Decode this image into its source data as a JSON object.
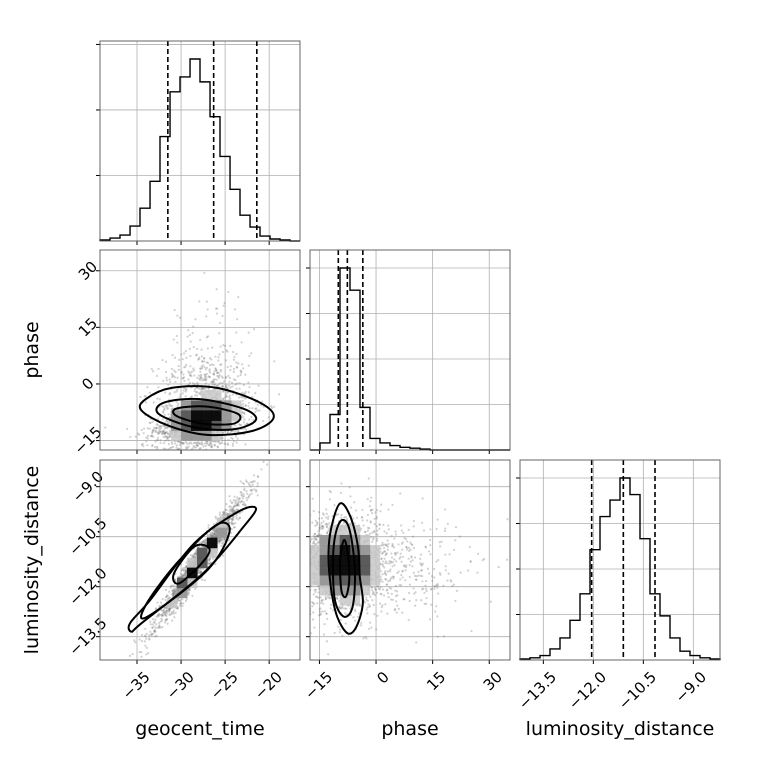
{
  "chart_data": {
    "type": "corner",
    "parameters": [
      "geocent_time",
      "phase",
      "luminosity_distance"
    ],
    "axes": {
      "geocent_time": {
        "range": [
          -39.2,
          -16.5
        ],
        "ticks": [
          -35,
          -30,
          -25,
          -20
        ],
        "tick_labels": [
          "−35",
          "−30",
          "−25",
          "−20"
        ],
        "label": "geocent_time"
      },
      "phase": {
        "range": [
          -17.5,
          35.5
        ],
        "ticks": [
          -15,
          0,
          15,
          30
        ],
        "tick_labels": [
          "−15",
          "0",
          "15",
          "30"
        ],
        "label": "phase"
      },
      "luminosity_distance": {
        "range": [
          -14.2,
          -8.2
        ],
        "ticks": [
          -13.5,
          -12.0,
          -10.5,
          -9.0
        ],
        "tick_labels": [
          "−13.5",
          "−12.0",
          "−10.5",
          "−9.0"
        ],
        "label": "luminosity_distance"
      }
    },
    "grid": true,
    "histograms": [
      {
        "parameter": "geocent_time",
        "bin_edges": [
          -39.2,
          -38.06,
          -36.93,
          -35.79,
          -34.66,
          -33.52,
          -32.39,
          -31.25,
          -30.12,
          -28.98,
          -27.85,
          -26.71,
          -25.58,
          -24.44,
          -23.31,
          -22.17,
          -21.04,
          -19.9,
          -18.77,
          -17.63,
          -16.5
        ],
        "counts": [
          1,
          3,
          6,
          15,
          33,
          60,
          105,
          150,
          165,
          183,
          160,
          125,
          85,
          52,
          26,
          14,
          5,
          2,
          1,
          0
        ],
        "quantiles": [
          -31.5,
          -26.3,
          -21.4
        ]
      },
      {
        "parameter": "phase",
        "bin_edges": [
          -17.5,
          -14.85,
          -12.2,
          -9.55,
          -6.9,
          -4.25,
          -1.6,
          1.05,
          3.7,
          6.35,
          9.0,
          11.65,
          14.3,
          16.95,
          19.6,
          22.25,
          24.9,
          27.55,
          30.2,
          32.85,
          35.5
        ],
        "counts": [
          0,
          8,
          40,
          205,
          180,
          48,
          13,
          8,
          5,
          3,
          2,
          1,
          0,
          0,
          0,
          0,
          0,
          0,
          0,
          0
        ],
        "quantiles": [
          -10.0,
          -7.6,
          -3.5
        ]
      },
      {
        "parameter": "luminosity_distance",
        "bin_edges": [
          -14.2,
          -13.9,
          -13.6,
          -13.3,
          -13.0,
          -12.7,
          -12.4,
          -12.1,
          -11.8,
          -11.5,
          -11.2,
          -10.9,
          -10.6,
          -10.3,
          -10.0,
          -9.7,
          -9.4,
          -9.1,
          -8.8,
          -8.5,
          -8.2
        ],
        "counts": [
          1,
          2,
          4,
          10,
          20,
          36,
          60,
          100,
          130,
          145,
          165,
          150,
          110,
          60,
          40,
          20,
          8,
          4,
          2,
          1
        ],
        "quantiles": [
          -12.05,
          -11.1,
          -10.15
        ]
      }
    ],
    "joint": [
      {
        "x": "geocent_time",
        "y": "phase",
        "correlation": 0.28,
        "n_points": 1800,
        "density_peak": {
          "x": -27.6,
          "y": -9.2
        },
        "contours": [
          [
            [
              -34,
              -4
            ],
            [
              -31,
              -1
            ],
            [
              -26,
              -1
            ],
            [
              -21,
              -5
            ],
            [
              -19.5,
              -9
            ],
            [
              -22,
              -12.5
            ],
            [
              -27,
              -13.5
            ],
            [
              -31.5,
              -11
            ],
            [
              -34.5,
              -7
            ]
          ],
          [
            [
              -32,
              -5
            ],
            [
              -28,
              -4
            ],
            [
              -23,
              -6.5
            ],
            [
              -21.5,
              -9.5
            ],
            [
              -24,
              -12
            ],
            [
              -28.5,
              -11.5
            ],
            [
              -32.5,
              -8
            ]
          ],
          [
            [
              -30.5,
              -6.5
            ],
            [
              -27,
              -6
            ],
            [
              -23.5,
              -8
            ],
            [
              -24,
              -10.5
            ],
            [
              -27.5,
              -10.5
            ],
            [
              -30.5,
              -8.5
            ]
          ]
        ]
      },
      {
        "x": "geocent_time",
        "y": "luminosity_distance",
        "correlation": 0.97,
        "n_points": 1800,
        "density_peak": {
          "x": -27.8,
          "y": -11.2
        },
        "contours": [
          [
            [
              -35.6,
              -13.35
            ],
            [
              -34.5,
              -13.1
            ],
            [
              -27.5,
              -11.6
            ],
            [
              -22.9,
              -10.2
            ],
            [
              -21.5,
              -9.65
            ],
            [
              -23.5,
              -9.75
            ],
            [
              -28.5,
              -10.7
            ],
            [
              -33.5,
              -12.4
            ],
            [
              -35.8,
              -13.1
            ]
          ],
          [
            [
              -33.8,
              -12.9
            ],
            [
              -27,
              -11.5
            ],
            [
              -24.5,
              -10.35
            ],
            [
              -26,
              -10.15
            ],
            [
              -30.5,
              -11.3
            ],
            [
              -34,
              -12.55
            ]
          ],
          [
            [
              -30.2,
              -11.9
            ],
            [
              -27.5,
              -11.25
            ],
            [
              -26.8,
              -10.85
            ],
            [
              -28.5,
              -10.8
            ],
            [
              -30.8,
              -11.6
            ]
          ]
        ]
      },
      {
        "x": "phase",
        "y": "luminosity_distance",
        "correlation": -0.05,
        "n_points": 1800,
        "density_peak": {
          "x": -8.3,
          "y": -11.3
        },
        "contours": [
          [
            [
              -9.5,
              -9.5
            ],
            [
              -6.8,
              -9.9
            ],
            [
              -4.8,
              -10.8
            ],
            [
              -4.3,
              -11.7
            ],
            [
              -3.5,
              -12.5
            ],
            [
              -5.2,
              -13.2
            ],
            [
              -7.5,
              -13.4
            ],
            [
              -10.3,
              -12.9
            ],
            [
              -12,
              -12
            ],
            [
              -12.6,
              -11
            ],
            [
              -11.8,
              -10.2
            ]
          ],
          [
            [
              -9,
              -10
            ],
            [
              -7,
              -10.3
            ],
            [
              -5.6,
              -11.5
            ],
            [
              -6.2,
              -12.6
            ],
            [
              -8.5,
              -12.9
            ],
            [
              -10.9,
              -12.4
            ],
            [
              -11.4,
              -11.2
            ],
            [
              -10.7,
              -10.4
            ]
          ],
          [
            [
              -8.5,
              -10.6
            ],
            [
              -7.5,
              -11
            ],
            [
              -7.1,
              -11.8
            ],
            [
              -8,
              -12.3
            ],
            [
              -9.2,
              -12.1
            ],
            [
              -9.5,
              -11.2
            ]
          ]
        ]
      }
    ]
  }
}
